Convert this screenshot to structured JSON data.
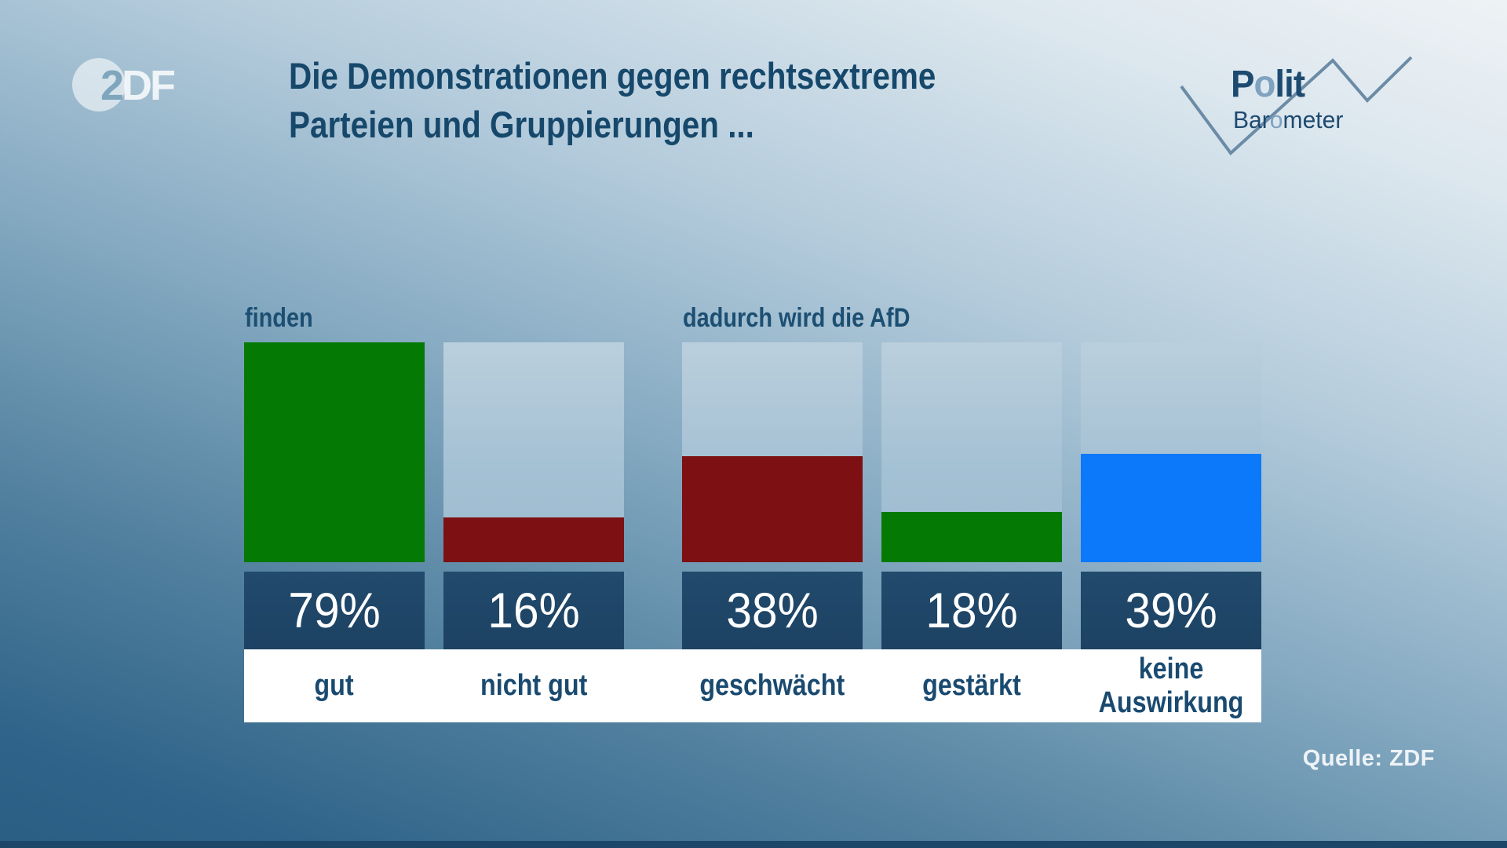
{
  "branding": {
    "zdf": {
      "two": "2",
      "df": "DF"
    },
    "politbarometer": {
      "polit_p": "P",
      "polit_o": "o",
      "polit_rest": "lit",
      "baro_pre": "Bar",
      "baro_o": "o",
      "baro_rest": "meter"
    }
  },
  "title": {
    "line1": "Die Demonstrationen gegen rechtsextreme",
    "line2": "Parteien und Gruppierungen ..."
  },
  "chart_data": {
    "type": "bar",
    "title": "Die Demonstrationen gegen rechtsextreme Parteien und Gruppierungen ...",
    "unit": "percent",
    "value_suffix": "%",
    "scale_max": 79,
    "legend": "none",
    "groups": [
      {
        "label": "finden",
        "bars": [
          {
            "category": "gut",
            "value": 79,
            "color": "#047a04"
          },
          {
            "category": "nicht gut",
            "value": 16,
            "color": "#7d1012"
          }
        ]
      },
      {
        "label": "dadurch wird die AfD",
        "bars": [
          {
            "category": "geschwächt",
            "value": 38,
            "color": "#7d1012"
          },
          {
            "category": "gestärkt",
            "value": 18,
            "color": "#047a04"
          },
          {
            "category": "keine Auswirkung",
            "value": 39,
            "color": "#0b79fa"
          }
        ]
      }
    ],
    "source": "Quelle: ZDF"
  },
  "colors": {
    "title_text": "#16486b",
    "bar_frame": "#a5c1d4",
    "value_box": "#1e4565",
    "value_text": "#ffffff",
    "label_strip": "#ffffff",
    "category_text": "#1a4a70",
    "positive_green": "#047a04",
    "negative_red": "#7d1012",
    "neutral_blue": "#0b79fa",
    "background_top": "#eef2f5",
    "background_bottom": "#2b5e83"
  }
}
